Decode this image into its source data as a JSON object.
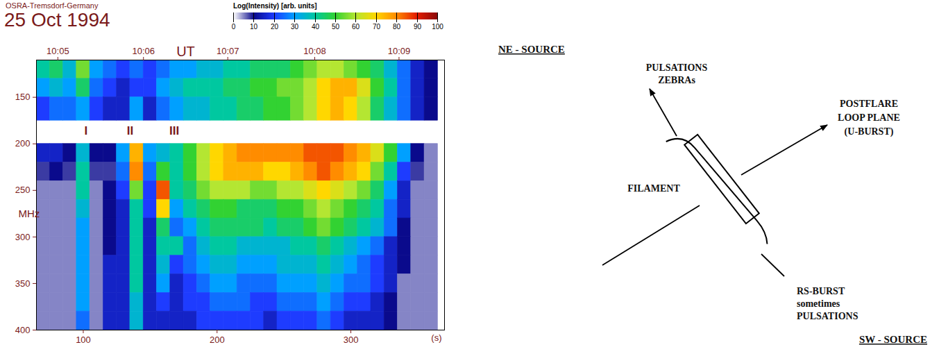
{
  "chart_data": {
    "type": "heatmap",
    "title": "25 Oct 1994",
    "subtitle": "OSRA-Tremsdorf-Germany",
    "x_label": "(s)",
    "y_label": "MHz",
    "xlim": [
      65,
      370
    ],
    "xticks": [
      100,
      200,
      300
    ],
    "ylim": [
      400,
      110
    ],
    "yticks": [
      150,
      200,
      250,
      300,
      350,
      400
    ],
    "top_axis": {
      "label": "UT",
      "ticks": [
        {
          "value": 81,
          "label": "10:05"
        },
        {
          "value": 145,
          "label": "10:06"
        },
        {
          "value": 208,
          "label": "10:07"
        },
        {
          "value": 273,
          "label": "10:08"
        },
        {
          "value": 336,
          "label": "10:09"
        }
      ]
    },
    "colorbar": {
      "label": "Log(Intensity) [arb. units]",
      "range": [
        0,
        100
      ],
      "ticks": [
        0,
        10,
        20,
        30,
        40,
        50,
        60,
        70,
        80,
        90,
        100
      ]
    },
    "annotations": [
      {
        "text": "I",
        "x": 102,
        "y": 186
      },
      {
        "text": "II",
        "x": 135,
        "y": 186
      },
      {
        "text": "III",
        "x": 168,
        "y": 186
      }
    ],
    "x_bins": [
      65,
      75,
      85,
      95,
      105,
      115,
      125,
      135,
      145,
      155,
      165,
      175,
      185,
      195,
      205,
      215,
      225,
      235,
      245,
      255,
      265,
      275,
      285,
      295,
      305,
      315,
      325,
      335,
      345,
      355,
      365
    ],
    "y_bins": [
      110,
      130,
      150,
      175,
      200,
      220,
      240,
      260,
      280,
      300,
      320,
      340,
      360,
      380,
      400
    ],
    "cells": [
      [
        40,
        45,
        35,
        55,
        30,
        25,
        20,
        25,
        20,
        25,
        30,
        30,
        35,
        35,
        40,
        40,
        45,
        45,
        45,
        50,
        55,
        60,
        60,
        55,
        50,
        45,
        35,
        25,
        15,
        10
      ],
      [
        30,
        35,
        30,
        45,
        25,
        20,
        15,
        20,
        20,
        30,
        35,
        40,
        40,
        40,
        45,
        45,
        50,
        50,
        55,
        55,
        60,
        70,
        75,
        75,
        65,
        50,
        40,
        25,
        15,
        10
      ],
      [
        20,
        25,
        25,
        30,
        20,
        15,
        15,
        30,
        15,
        25,
        30,
        35,
        35,
        40,
        40,
        45,
        45,
        50,
        50,
        55,
        60,
        70,
        75,
        70,
        60,
        45,
        35,
        25,
        15,
        10
      ],
      [
        null,
        null,
        null,
        null,
        null,
        null,
        null,
        null,
        null,
        null,
        null,
        null,
        null,
        null,
        null,
        null,
        null,
        null,
        null,
        null,
        null,
        null,
        null,
        null,
        null,
        null,
        null,
        null,
        null,
        null
      ],
      [
        15,
        15,
        10,
        35,
        10,
        10,
        30,
        75,
        30,
        35,
        40,
        50,
        60,
        70,
        75,
        80,
        80,
        80,
        80,
        80,
        85,
        85,
        85,
        80,
        75,
        65,
        50,
        30,
        10,
        5
      ],
      [
        8,
        10,
        8,
        40,
        8,
        8,
        25,
        80,
        25,
        50,
        40,
        50,
        60,
        70,
        75,
        75,
        75,
        70,
        70,
        75,
        80,
        85,
        80,
        75,
        70,
        55,
        40,
        20,
        8,
        5
      ],
      [
        5,
        5,
        5,
        40,
        5,
        10,
        20,
        55,
        20,
        85,
        40,
        45,
        55,
        60,
        60,
        60,
        55,
        55,
        60,
        60,
        65,
        70,
        65,
        60,
        55,
        45,
        30,
        15,
        5,
        5
      ],
      [
        5,
        5,
        5,
        35,
        5,
        10,
        15,
        40,
        20,
        70,
        30,
        40,
        45,
        50,
        50,
        45,
        45,
        45,
        50,
        50,
        55,
        60,
        55,
        50,
        45,
        40,
        25,
        15,
        5,
        5
      ],
      [
        5,
        5,
        5,
        30,
        5,
        10,
        15,
        40,
        15,
        45,
        25,
        30,
        40,
        45,
        45,
        45,
        45,
        40,
        45,
        45,
        50,
        55,
        50,
        45,
        40,
        35,
        25,
        10,
        5,
        5
      ],
      [
        5,
        5,
        5,
        30,
        5,
        10,
        15,
        40,
        15,
        40,
        40,
        25,
        35,
        40,
        40,
        35,
        35,
        35,
        35,
        40,
        40,
        45,
        40,
        35,
        30,
        25,
        15,
        10,
        5,
        5
      ],
      [
        5,
        5,
        5,
        30,
        5,
        15,
        15,
        40,
        15,
        35,
        20,
        25,
        30,
        35,
        35,
        30,
        30,
        30,
        35,
        35,
        35,
        40,
        35,
        30,
        25,
        20,
        15,
        10,
        5,
        5
      ],
      [
        5,
        5,
        5,
        30,
        5,
        15,
        15,
        40,
        15,
        30,
        15,
        20,
        25,
        30,
        30,
        25,
        25,
        25,
        30,
        30,
        30,
        35,
        30,
        25,
        25,
        20,
        15,
        5,
        5,
        5
      ],
      [
        5,
        5,
        5,
        30,
        5,
        15,
        15,
        35,
        15,
        20,
        15,
        20,
        20,
        25,
        25,
        25,
        20,
        20,
        25,
        25,
        25,
        30,
        25,
        20,
        20,
        15,
        10,
        5,
        5,
        5
      ],
      [
        5,
        5,
        5,
        25,
        5,
        15,
        15,
        35,
        15,
        15,
        15,
        15,
        20,
        20,
        20,
        20,
        20,
        15,
        20,
        20,
        20,
        25,
        20,
        15,
        15,
        15,
        10,
        5,
        5,
        5
      ]
    ]
  },
  "diagram": {
    "ne_source": {
      "title": "NE - SOURCE",
      "labels": [
        "PULSATIONS",
        "ZEBRAs"
      ]
    },
    "postflare": {
      "labels": [
        "POSTFLARE",
        "LOOP PLANE",
        "(U-BURST)"
      ]
    },
    "filament": {
      "label": "FILAMENT"
    },
    "sw_source": {
      "title": "SW - SOURCE",
      "labels": [
        "RS-BURST",
        "sometimes",
        "PULSATIONS"
      ]
    }
  }
}
